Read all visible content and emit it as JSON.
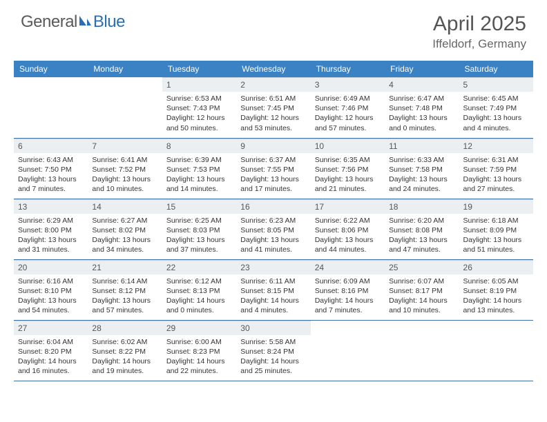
{
  "logo": {
    "part1": "General",
    "part2": "Blue"
  },
  "title": "April 2025",
  "location": "Iffeldorf, Germany",
  "colors": {
    "header_bg": "#3b82c4",
    "header_text": "#ffffff",
    "daynum_bg": "#eceff1",
    "border": "#3b6fa5",
    "logo_gray": "#5a5a5a",
    "logo_blue": "#2a6fb5",
    "body_text": "#333333"
  },
  "weekdays": [
    "Sunday",
    "Monday",
    "Tuesday",
    "Wednesday",
    "Thursday",
    "Friday",
    "Saturday"
  ],
  "weeks": [
    [
      {
        "n": "",
        "sr": "",
        "ss": "",
        "dl": ""
      },
      {
        "n": "",
        "sr": "",
        "ss": "",
        "dl": ""
      },
      {
        "n": "1",
        "sr": "Sunrise: 6:53 AM",
        "ss": "Sunset: 7:43 PM",
        "dl": "Daylight: 12 hours and 50 minutes."
      },
      {
        "n": "2",
        "sr": "Sunrise: 6:51 AM",
        "ss": "Sunset: 7:45 PM",
        "dl": "Daylight: 12 hours and 53 minutes."
      },
      {
        "n": "3",
        "sr": "Sunrise: 6:49 AM",
        "ss": "Sunset: 7:46 PM",
        "dl": "Daylight: 12 hours and 57 minutes."
      },
      {
        "n": "4",
        "sr": "Sunrise: 6:47 AM",
        "ss": "Sunset: 7:48 PM",
        "dl": "Daylight: 13 hours and 0 minutes."
      },
      {
        "n": "5",
        "sr": "Sunrise: 6:45 AM",
        "ss": "Sunset: 7:49 PM",
        "dl": "Daylight: 13 hours and 4 minutes."
      }
    ],
    [
      {
        "n": "6",
        "sr": "Sunrise: 6:43 AM",
        "ss": "Sunset: 7:50 PM",
        "dl": "Daylight: 13 hours and 7 minutes."
      },
      {
        "n": "7",
        "sr": "Sunrise: 6:41 AM",
        "ss": "Sunset: 7:52 PM",
        "dl": "Daylight: 13 hours and 10 minutes."
      },
      {
        "n": "8",
        "sr": "Sunrise: 6:39 AM",
        "ss": "Sunset: 7:53 PM",
        "dl": "Daylight: 13 hours and 14 minutes."
      },
      {
        "n": "9",
        "sr": "Sunrise: 6:37 AM",
        "ss": "Sunset: 7:55 PM",
        "dl": "Daylight: 13 hours and 17 minutes."
      },
      {
        "n": "10",
        "sr": "Sunrise: 6:35 AM",
        "ss": "Sunset: 7:56 PM",
        "dl": "Daylight: 13 hours and 21 minutes."
      },
      {
        "n": "11",
        "sr": "Sunrise: 6:33 AM",
        "ss": "Sunset: 7:58 PM",
        "dl": "Daylight: 13 hours and 24 minutes."
      },
      {
        "n": "12",
        "sr": "Sunrise: 6:31 AM",
        "ss": "Sunset: 7:59 PM",
        "dl": "Daylight: 13 hours and 27 minutes."
      }
    ],
    [
      {
        "n": "13",
        "sr": "Sunrise: 6:29 AM",
        "ss": "Sunset: 8:00 PM",
        "dl": "Daylight: 13 hours and 31 minutes."
      },
      {
        "n": "14",
        "sr": "Sunrise: 6:27 AM",
        "ss": "Sunset: 8:02 PM",
        "dl": "Daylight: 13 hours and 34 minutes."
      },
      {
        "n": "15",
        "sr": "Sunrise: 6:25 AM",
        "ss": "Sunset: 8:03 PM",
        "dl": "Daylight: 13 hours and 37 minutes."
      },
      {
        "n": "16",
        "sr": "Sunrise: 6:23 AM",
        "ss": "Sunset: 8:05 PM",
        "dl": "Daylight: 13 hours and 41 minutes."
      },
      {
        "n": "17",
        "sr": "Sunrise: 6:22 AM",
        "ss": "Sunset: 8:06 PM",
        "dl": "Daylight: 13 hours and 44 minutes."
      },
      {
        "n": "18",
        "sr": "Sunrise: 6:20 AM",
        "ss": "Sunset: 8:08 PM",
        "dl": "Daylight: 13 hours and 47 minutes."
      },
      {
        "n": "19",
        "sr": "Sunrise: 6:18 AM",
        "ss": "Sunset: 8:09 PM",
        "dl": "Daylight: 13 hours and 51 minutes."
      }
    ],
    [
      {
        "n": "20",
        "sr": "Sunrise: 6:16 AM",
        "ss": "Sunset: 8:10 PM",
        "dl": "Daylight: 13 hours and 54 minutes."
      },
      {
        "n": "21",
        "sr": "Sunrise: 6:14 AM",
        "ss": "Sunset: 8:12 PM",
        "dl": "Daylight: 13 hours and 57 minutes."
      },
      {
        "n": "22",
        "sr": "Sunrise: 6:12 AM",
        "ss": "Sunset: 8:13 PM",
        "dl": "Daylight: 14 hours and 0 minutes."
      },
      {
        "n": "23",
        "sr": "Sunrise: 6:11 AM",
        "ss": "Sunset: 8:15 PM",
        "dl": "Daylight: 14 hours and 4 minutes."
      },
      {
        "n": "24",
        "sr": "Sunrise: 6:09 AM",
        "ss": "Sunset: 8:16 PM",
        "dl": "Daylight: 14 hours and 7 minutes."
      },
      {
        "n": "25",
        "sr": "Sunrise: 6:07 AM",
        "ss": "Sunset: 8:17 PM",
        "dl": "Daylight: 14 hours and 10 minutes."
      },
      {
        "n": "26",
        "sr": "Sunrise: 6:05 AM",
        "ss": "Sunset: 8:19 PM",
        "dl": "Daylight: 14 hours and 13 minutes."
      }
    ],
    [
      {
        "n": "27",
        "sr": "Sunrise: 6:04 AM",
        "ss": "Sunset: 8:20 PM",
        "dl": "Daylight: 14 hours and 16 minutes."
      },
      {
        "n": "28",
        "sr": "Sunrise: 6:02 AM",
        "ss": "Sunset: 8:22 PM",
        "dl": "Daylight: 14 hours and 19 minutes."
      },
      {
        "n": "29",
        "sr": "Sunrise: 6:00 AM",
        "ss": "Sunset: 8:23 PM",
        "dl": "Daylight: 14 hours and 22 minutes."
      },
      {
        "n": "30",
        "sr": "Sunrise: 5:58 AM",
        "ss": "Sunset: 8:24 PM",
        "dl": "Daylight: 14 hours and 25 minutes."
      },
      {
        "n": "",
        "sr": "",
        "ss": "",
        "dl": ""
      },
      {
        "n": "",
        "sr": "",
        "ss": "",
        "dl": ""
      },
      {
        "n": "",
        "sr": "",
        "ss": "",
        "dl": ""
      }
    ]
  ]
}
